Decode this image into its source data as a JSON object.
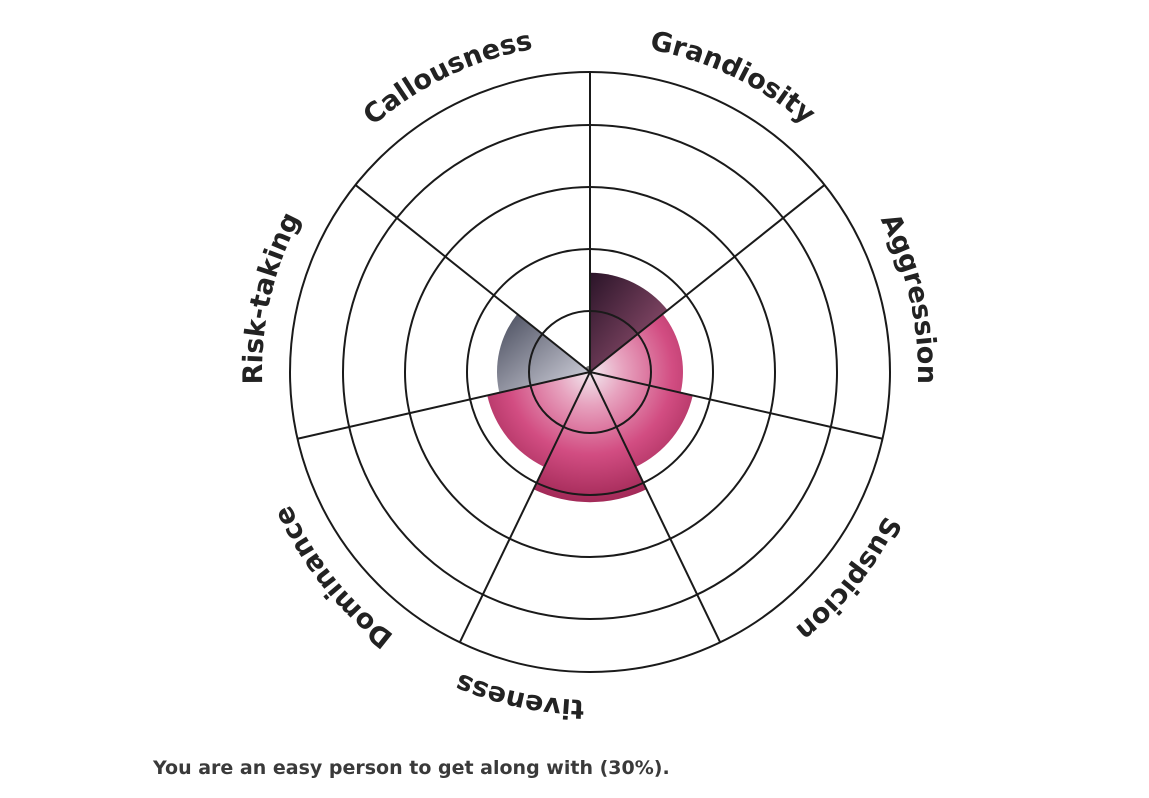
{
  "chart_data": {
    "type": "polar-area",
    "categories": [
      "Grandiosity",
      "Aggression",
      "Suspicion",
      "Manipulativeness",
      "Dominance",
      "Risk-taking",
      "Callousness"
    ],
    "values": [
      1.6,
      1.5,
      1.7,
      2.1,
      1.7,
      1.5,
      0.1
    ],
    "rlim": [
      0,
      5
    ],
    "ring_count": 5,
    "title": "",
    "colors": {
      "grid": "#1a1a1a",
      "fill_dark": "#3d1c33",
      "fill_mid": "#9c2752",
      "fill_pink": "#d63a78",
      "fill_gray": "#5a5f6e",
      "fill_light": "#f0e8ee"
    }
  },
  "result": {
    "text": "You are an easy person to get along with (30%)."
  }
}
